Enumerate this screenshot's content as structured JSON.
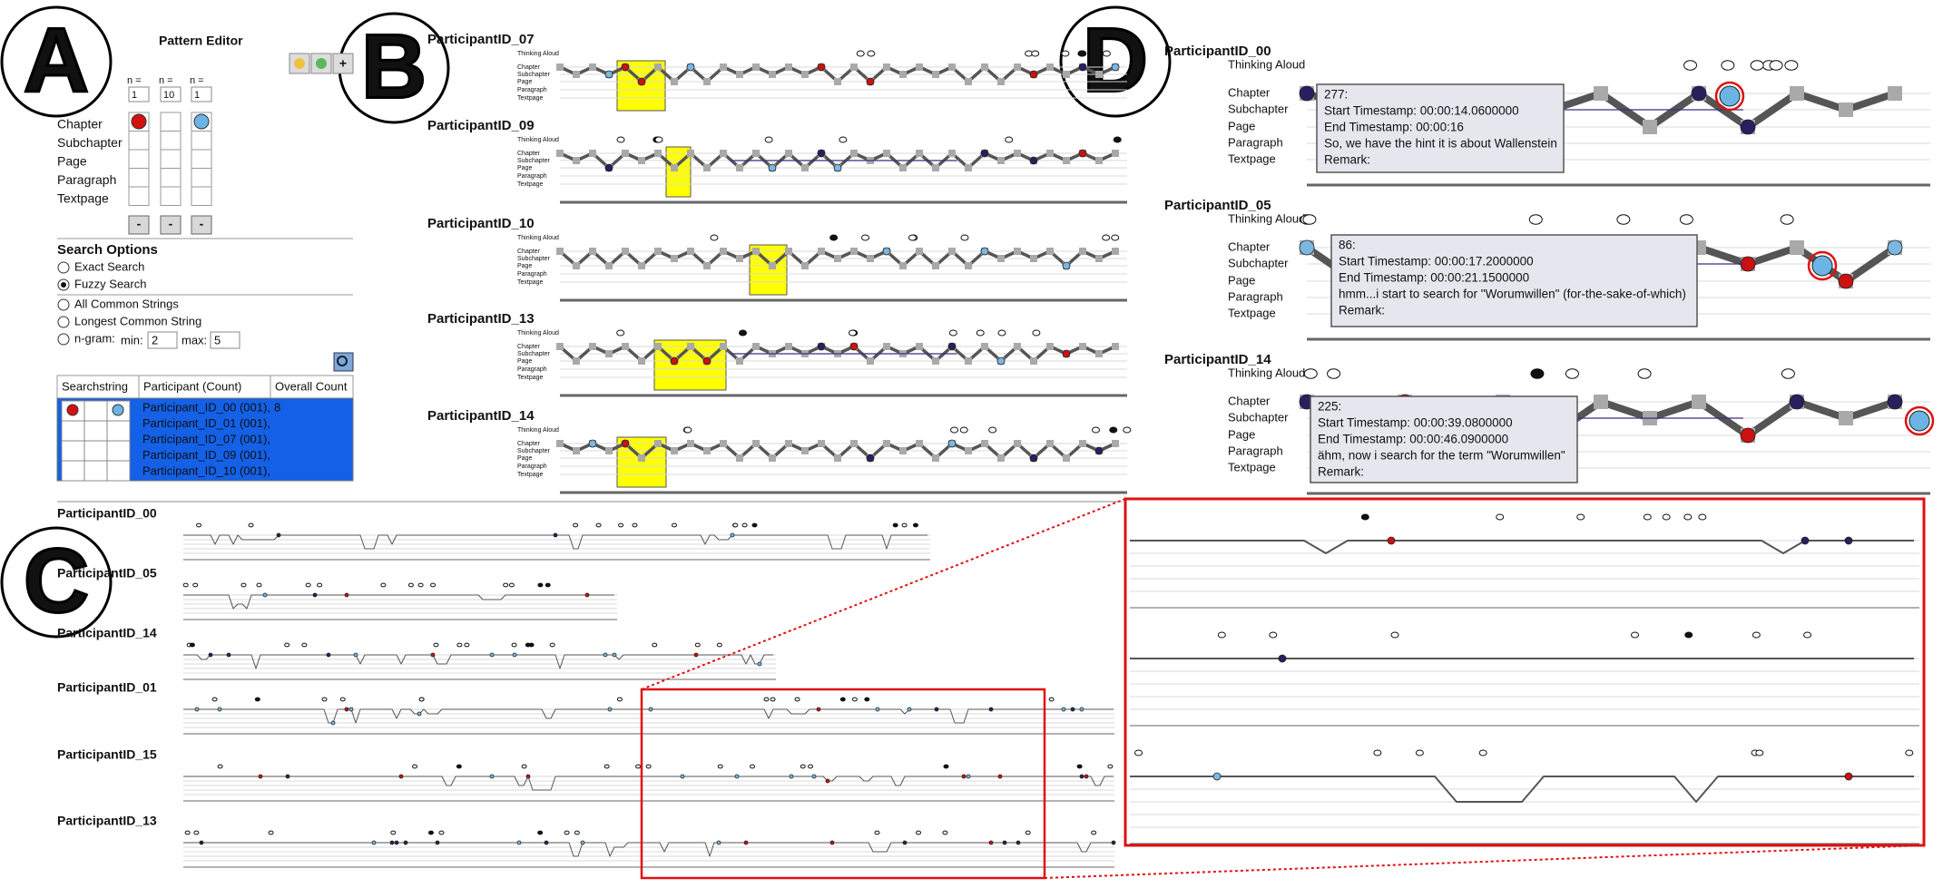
{
  "panel_letters": [
    "A",
    "B",
    "C",
    "D"
  ],
  "pattern_editor": {
    "title": "Pattern Editor",
    "add_button": "+",
    "columns": [
      {
        "n_label": "n =",
        "n": 1,
        "remove": "-"
      },
      {
        "n_label": "n =",
        "n": 10,
        "remove": "-"
      },
      {
        "n_label": "n =",
        "n": 1,
        "remove": "-"
      }
    ],
    "levels": [
      "Chapter",
      "Subchapter",
      "Page",
      "Paragraph",
      "Textpage"
    ]
  },
  "search_options": {
    "title": "Search Options",
    "modes": [
      "Exact Search",
      "Fuzzy Search"
    ],
    "string_modes": [
      "All Common Strings",
      "Longest Common String"
    ],
    "ngram": "n-gram:",
    "min_label": "min:",
    "min": 2,
    "max_label": "max:",
    "max": 5
  },
  "results_table": {
    "headers": [
      "Searchstring",
      "Participant (Count)",
      "Overall Count"
    ],
    "participants": [
      "Participant_ID_00 (001),",
      "Participant_ID_01 (001),",
      "Participant_ID_07 (001),",
      "Participant_ID_09 (001),",
      "Participant_ID_10 (001),"
    ],
    "overall": "8"
  },
  "b_view": {
    "participants": [
      "ParticipantID_07",
      "ParticipantID_09",
      "ParticipantID_10",
      "ParticipantID_13",
      "ParticipantID_14"
    ],
    "levels": [
      "Thinking Aloud",
      "Chapter",
      "Subchapter",
      "Page",
      "Paragraph",
      "Textpage"
    ]
  },
  "d_view": {
    "levels": [
      "Thinking Aloud",
      "Chapter",
      "Subchapter",
      "Page",
      "Paragraph",
      "Textpage"
    ],
    "participants": [
      {
        "name": "ParticipantID_00",
        "tooltip": [
          "277:",
          "Start Timestamp: 00:00:14.0600000",
          "End Timestamp: 00:00:16",
          "So, we have the hint it is about Wallenstein",
          "Remark:"
        ]
      },
      {
        "name": "ParticipantID_05",
        "tooltip": [
          "86:",
          "Start Timestamp: 00:00:17.2000000",
          "End Timestamp: 00:00:21.1500000",
          "hmm...i start to search for \"Worumwillen\" (for-the-sake-of-which)",
          "Remark:"
        ]
      },
      {
        "name": "ParticipantID_14",
        "tooltip": [
          "225:",
          "Start Timestamp: 00:00:39.0800000",
          "End Timestamp: 00:00:46.0900000",
          "ähm, now i search for the term \"Worumwillen\"",
          "Remark:"
        ]
      }
    ]
  },
  "c_view": {
    "participants": [
      "ParticipantID_00",
      "ParticipantID_05",
      "ParticipantID_14",
      "ParticipantID_01",
      "ParticipantID_15",
      "ParticipantID_13"
    ]
  }
}
